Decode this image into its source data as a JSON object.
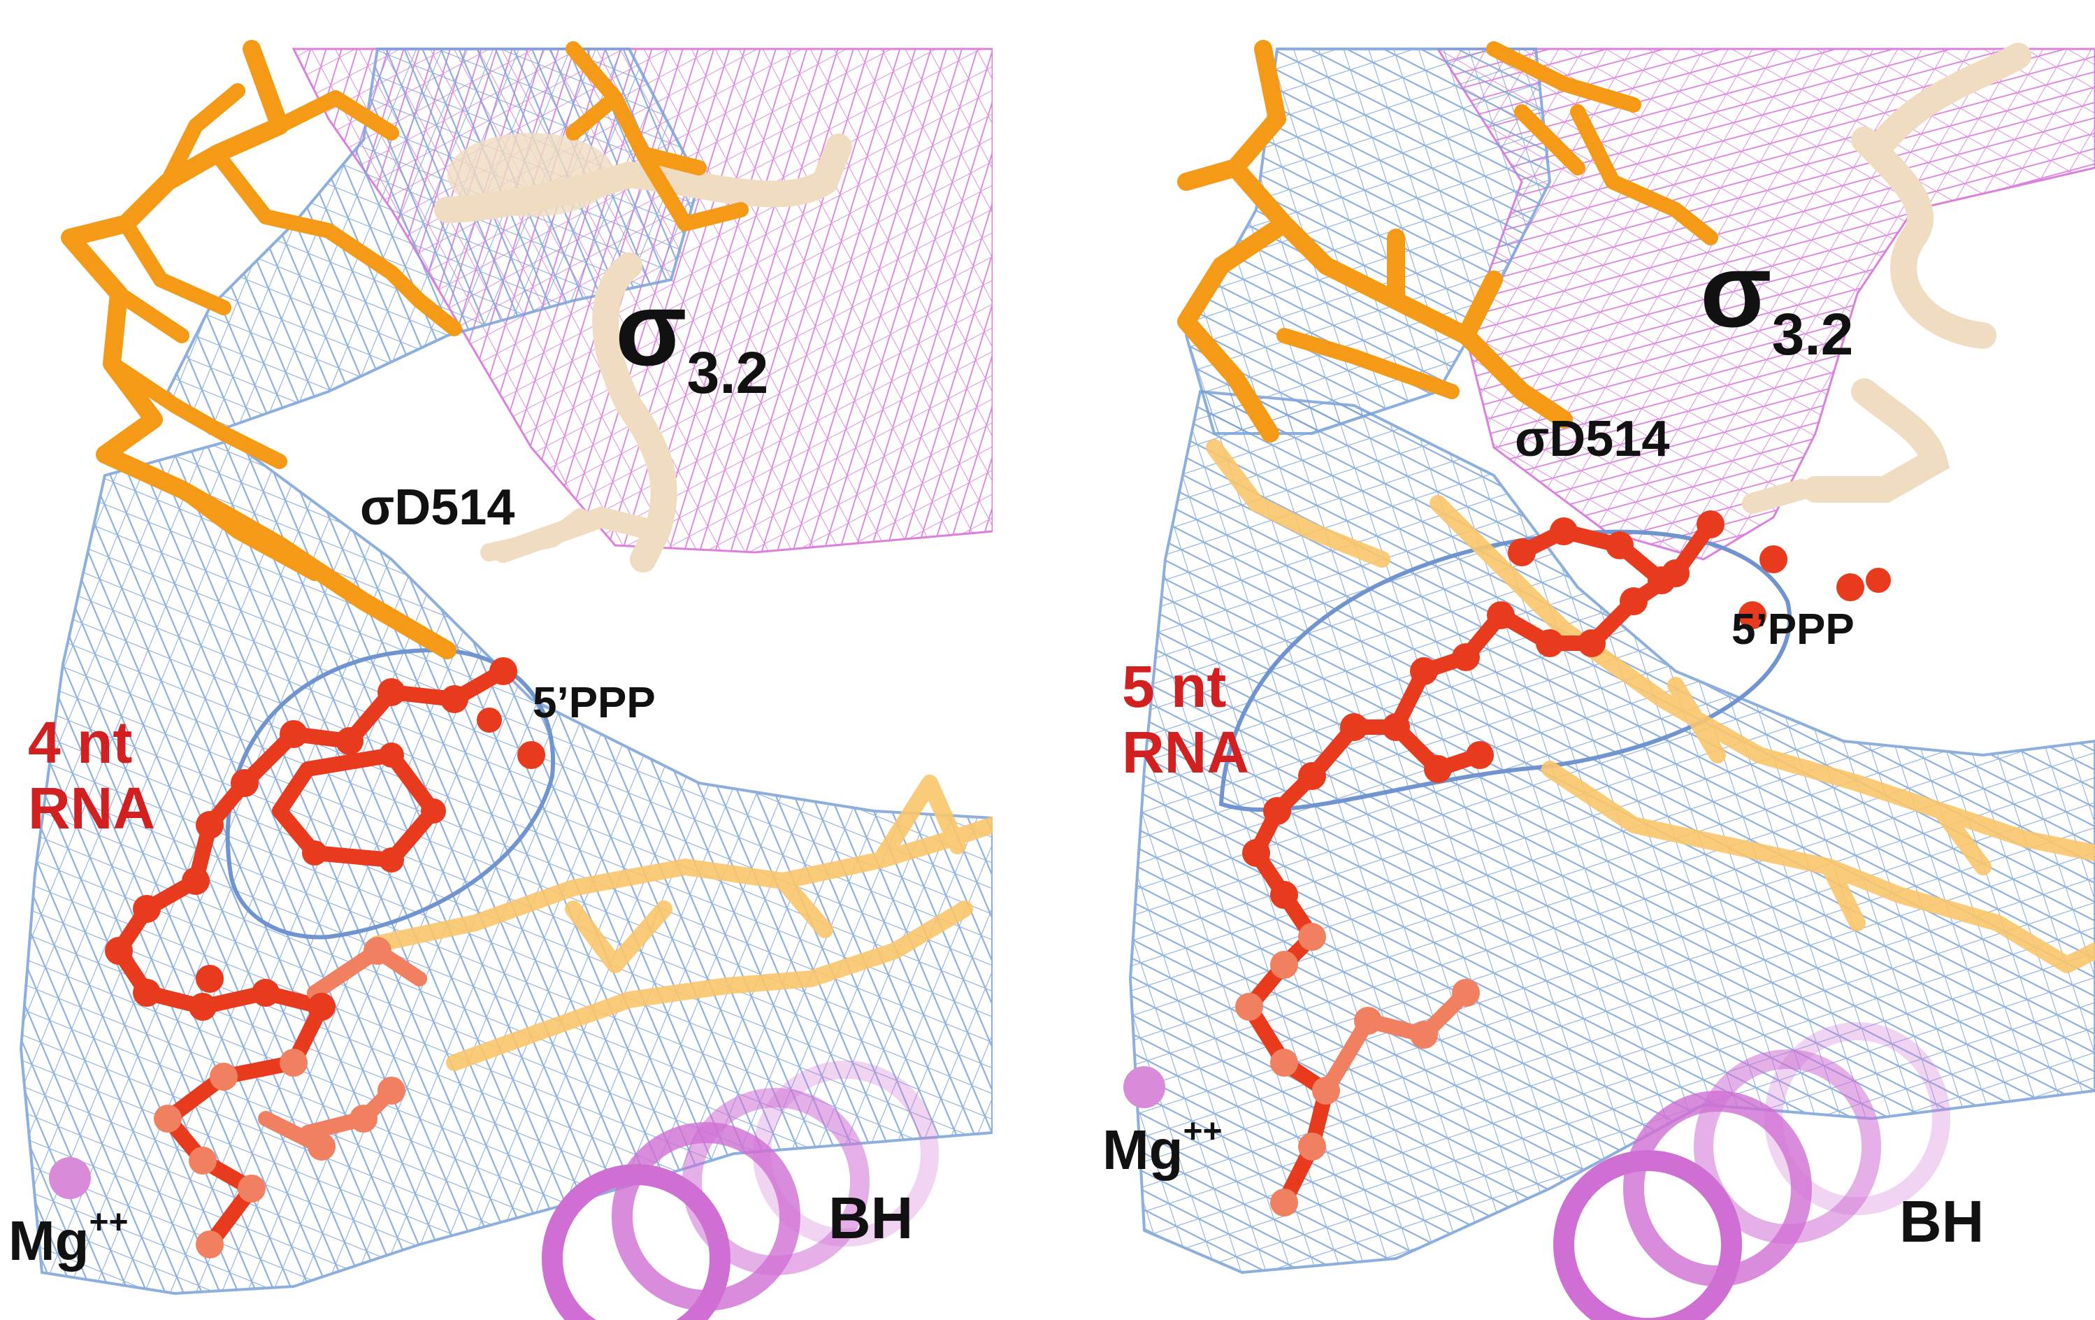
{
  "panels": [
    {
      "id": "left",
      "sigma_label": "σ",
      "sigma_sub": "3.2",
      "residue_label": "σD514",
      "ppp_label": "5’PPP",
      "rna_line1": "4 nt",
      "rna_line2": "RNA",
      "mg_label": "Mg",
      "mg_sup": "++",
      "bh_label": "BH"
    },
    {
      "id": "right",
      "sigma_label": "σ",
      "sigma_sub": "3.2",
      "residue_label": "σD514",
      "ppp_label": "5’PPP",
      "rna_line1": "5 nt",
      "rna_line2": "RNA",
      "mg_label": "Mg",
      "mg_sup": "++",
      "bh_label": "BH"
    }
  ],
  "colors": {
    "density_mesh": "#7aa2d8",
    "sigma_mesh": "#d56ad8",
    "dna": "#f59a16",
    "dna_faded": "#f9c56a",
    "rna": "#e83a1c",
    "rna_faded": "#f08060",
    "sigma_ribbon": "#f0dcc0",
    "bridge_helix": "#cf6fd3",
    "magnesium": "#d98ad8",
    "label_black": "#111111",
    "label_red": "#d21f1f"
  }
}
